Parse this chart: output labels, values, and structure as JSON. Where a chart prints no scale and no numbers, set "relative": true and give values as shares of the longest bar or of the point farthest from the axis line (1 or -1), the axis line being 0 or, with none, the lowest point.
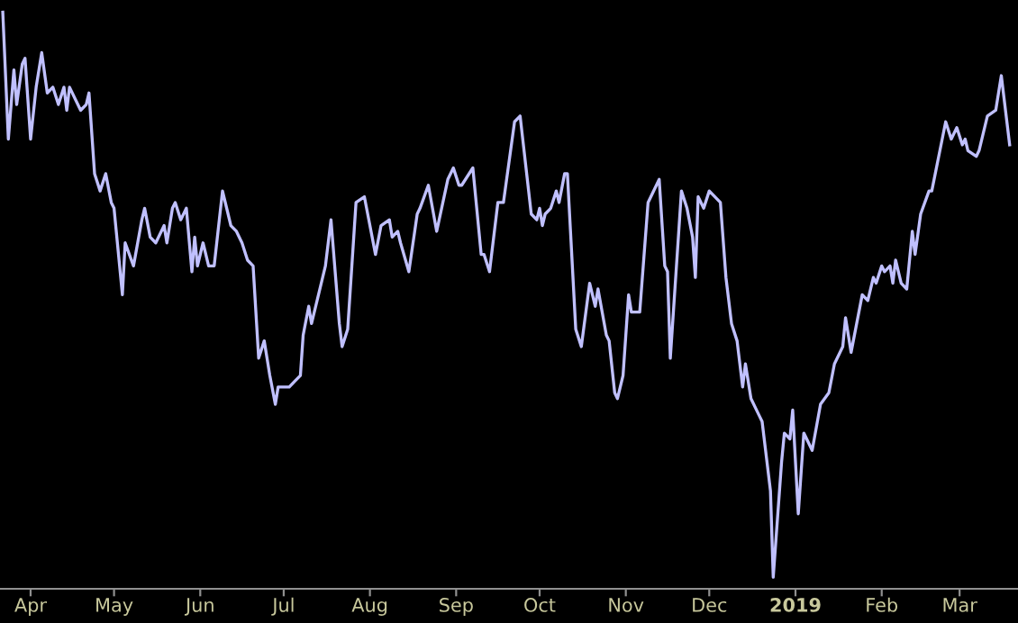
{
  "chart_data": {
    "type": "line",
    "relative": true,
    "grid": false,
    "legend": false,
    "tick_labels": "x",
    "marker": "none",
    "line_style": "solid",
    "xlim": [
      "2018-03-21",
      "2019-03-22"
    ],
    "xticks": [
      {
        "value": "2018-04-01",
        "label": "Apr"
      },
      {
        "value": "2018-05-01",
        "label": "May"
      },
      {
        "value": "2018-06-01",
        "label": "Jun"
      },
      {
        "value": "2018-07-01",
        "label": "Jul"
      },
      {
        "value": "2018-08-01",
        "label": "Aug"
      },
      {
        "value": "2018-09-01",
        "label": "Sep"
      },
      {
        "value": "2018-10-01",
        "label": "Oct"
      },
      {
        "value": "2018-11-01",
        "label": "Nov"
      },
      {
        "value": "2018-12-01",
        "label": "Dec"
      },
      {
        "value": "2019-01-01",
        "label": "2019"
      },
      {
        "value": "2019-02-01",
        "label": "Feb"
      },
      {
        "value": "2019-03-01",
        "label": "Mar"
      }
    ],
    "x": [
      "2018-03-22",
      "2018-03-24",
      "2018-03-26",
      "2018-03-27",
      "2018-03-29",
      "2018-03-30",
      "2018-04-01",
      "2018-04-03",
      "2018-04-05",
      "2018-04-07",
      "2018-04-09",
      "2018-04-11",
      "2018-04-13",
      "2018-04-14",
      "2018-04-15",
      "2018-04-17",
      "2018-04-19",
      "2018-04-21",
      "2018-04-22",
      "2018-04-24",
      "2018-04-26",
      "2018-04-28",
      "2018-04-30",
      "2018-05-01",
      "2018-05-04",
      "2018-05-05",
      "2018-05-08",
      "2018-05-11",
      "2018-05-12",
      "2018-05-14",
      "2018-05-16",
      "2018-05-19",
      "2018-05-20",
      "2018-05-22",
      "2018-05-23",
      "2018-05-25",
      "2018-05-27",
      "2018-05-29",
      "2018-05-30",
      "2018-05-31",
      "2018-06-02",
      "2018-06-04",
      "2018-06-06",
      "2018-06-09",
      "2018-06-12",
      "2018-06-14",
      "2018-06-16",
      "2018-06-18",
      "2018-06-20",
      "2018-06-22",
      "2018-06-24",
      "2018-06-25",
      "2018-06-26",
      "2018-06-28",
      "2018-06-29",
      "2018-07-01",
      "2018-07-03",
      "2018-07-05",
      "2018-07-07",
      "2018-07-08",
      "2018-07-10",
      "2018-07-11",
      "2018-07-13",
      "2018-07-16",
      "2018-07-18",
      "2018-07-21",
      "2018-07-22",
      "2018-07-24",
      "2018-07-27",
      "2018-07-30",
      "2018-08-03",
      "2018-08-05",
      "2018-08-08",
      "2018-08-09",
      "2018-08-11",
      "2018-08-12",
      "2018-08-15",
      "2018-08-18",
      "2018-08-19",
      "2018-08-22",
      "2018-08-25",
      "2018-08-29",
      "2018-08-31",
      "2018-09-02",
      "2018-09-03",
      "2018-09-07",
      "2018-09-10",
      "2018-09-11",
      "2018-09-13",
      "2018-09-16",
      "2018-09-18",
      "2018-09-22",
      "2018-09-24",
      "2018-09-28",
      "2018-09-30",
      "2018-10-01",
      "2018-10-02",
      "2018-10-03",
      "2018-10-05",
      "2018-10-07",
      "2018-10-08",
      "2018-10-10",
      "2018-10-11",
      "2018-10-14",
      "2018-10-16",
      "2018-10-19",
      "2018-10-21",
      "2018-10-22",
      "2018-10-25",
      "2018-10-26",
      "2018-10-28",
      "2018-10-29",
      "2018-10-31",
      "2018-11-02",
      "2018-11-03",
      "2018-11-06",
      "2018-11-09",
      "2018-11-13",
      "2018-11-15",
      "2018-11-16",
      "2018-11-17",
      "2018-11-21",
      "2018-11-23",
      "2018-11-25",
      "2018-11-26",
      "2018-11-27",
      "2018-11-29",
      "2018-12-01",
      "2018-12-05",
      "2018-12-07",
      "2018-12-09",
      "2018-12-11",
      "2018-12-13",
      "2018-12-14",
      "2018-12-16",
      "2018-12-19",
      "2018-12-20",
      "2018-12-22",
      "2018-12-23",
      "2018-12-24",
      "2018-12-27",
      "2018-12-28",
      "2018-12-30",
      "2018-12-31",
      "2019-01-02",
      "2019-01-04",
      "2019-01-07",
      "2019-01-10",
      "2019-01-13",
      "2019-01-15",
      "2019-01-18",
      "2019-01-19",
      "2019-01-21",
      "2019-01-25",
      "2019-01-27",
      "2019-01-29",
      "2019-01-30",
      "2019-02-01",
      "2019-02-02",
      "2019-02-04",
      "2019-02-05",
      "2019-02-06",
      "2019-02-08",
      "2019-02-10",
      "2019-02-12",
      "2019-02-13",
      "2019-02-15",
      "2019-02-18",
      "2019-02-19",
      "2019-02-24",
      "2019-02-26",
      "2019-02-28",
      "2019-03-02",
      "2019-03-03",
      "2019-03-04",
      "2019-03-07",
      "2019-03-08",
      "2019-03-11",
      "2019-03-14",
      "2019-03-16",
      "2019-03-19"
    ],
    "series": [
      {
        "color": "#c0c0ff",
        "values": [
          1.0,
          0.78,
          0.9,
          0.84,
          0.91,
          0.92,
          0.78,
          0.87,
          0.93,
          0.86,
          0.87,
          0.84,
          0.87,
          0.83,
          0.87,
          0.85,
          0.83,
          0.84,
          0.86,
          0.72,
          0.69,
          0.72,
          0.67,
          0.66,
          0.51,
          0.6,
          0.56,
          0.64,
          0.66,
          0.61,
          0.6,
          0.63,
          0.6,
          0.66,
          0.67,
          0.64,
          0.66,
          0.55,
          0.61,
          0.56,
          0.6,
          0.56,
          0.56,
          0.69,
          0.63,
          0.62,
          0.6,
          0.57,
          0.56,
          0.4,
          0.43,
          0.4,
          0.37,
          0.32,
          0.35,
          0.35,
          0.35,
          0.36,
          0.37,
          0.44,
          0.49,
          0.46,
          0.5,
          0.56,
          0.64,
          0.46,
          0.42,
          0.45,
          0.67,
          0.68,
          0.58,
          0.63,
          0.64,
          0.61,
          0.62,
          0.6,
          0.55,
          0.65,
          0.66,
          0.7,
          0.62,
          0.71,
          0.73,
          0.7,
          0.7,
          0.73,
          0.58,
          0.58,
          0.55,
          0.67,
          0.67,
          0.81,
          0.82,
          0.65,
          0.64,
          0.66,
          0.63,
          0.65,
          0.66,
          0.69,
          0.67,
          0.72,
          0.72,
          0.45,
          0.42,
          0.53,
          0.49,
          0.52,
          0.44,
          0.43,
          0.34,
          0.33,
          0.37,
          0.51,
          0.48,
          0.48,
          0.67,
          0.71,
          0.56,
          0.55,
          0.4,
          0.69,
          0.66,
          0.61,
          0.54,
          0.68,
          0.66,
          0.69,
          0.67,
          0.54,
          0.46,
          0.43,
          0.35,
          0.39,
          0.33,
          0.3,
          0.29,
          0.21,
          0.17,
          0.02,
          0.22,
          0.27,
          0.26,
          0.31,
          0.13,
          0.27,
          0.24,
          0.32,
          0.34,
          0.39,
          0.42,
          0.47,
          0.41,
          0.51,
          0.5,
          0.54,
          0.53,
          0.56,
          0.55,
          0.56,
          0.53,
          0.57,
          0.53,
          0.52,
          0.62,
          0.58,
          0.65,
          0.69,
          0.69,
          0.81,
          0.78,
          0.8,
          0.77,
          0.78,
          0.76,
          0.75,
          0.76,
          0.82,
          0.83,
          0.89,
          0.77
        ]
      }
    ]
  }
}
